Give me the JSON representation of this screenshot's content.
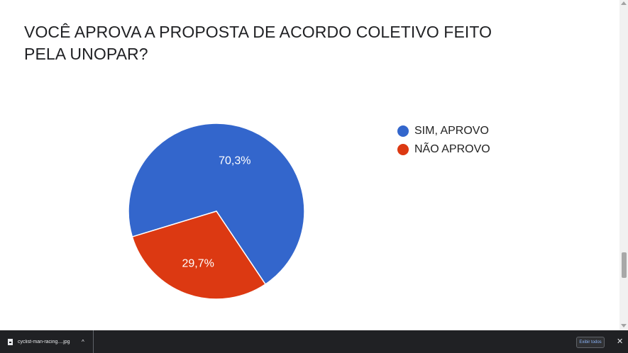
{
  "chart_data": {
    "type": "pie",
    "title": "VOCÊ APROVA A PROPOSTA DE ACORDO COLETIVO FEITO PELA UNOPAR?",
    "slices": [
      {
        "label": "SIM, APROVO",
        "value": 70.3,
        "display": "70,3%",
        "color": "#3366cc"
      },
      {
        "label": "NÃO APROVO",
        "value": 29.7,
        "display": "29,7%",
        "color": "#dc3912"
      }
    ],
    "legend_position": "right"
  },
  "download_bar": {
    "file_name": "cyclist-man-racing....jpg",
    "chevron": "^",
    "show_all_label": "Exibir todos",
    "close_label": "✕"
  },
  "icons": {
    "file": "file-icon",
    "close": "close-icon",
    "chevron": "chevron-up-icon"
  }
}
